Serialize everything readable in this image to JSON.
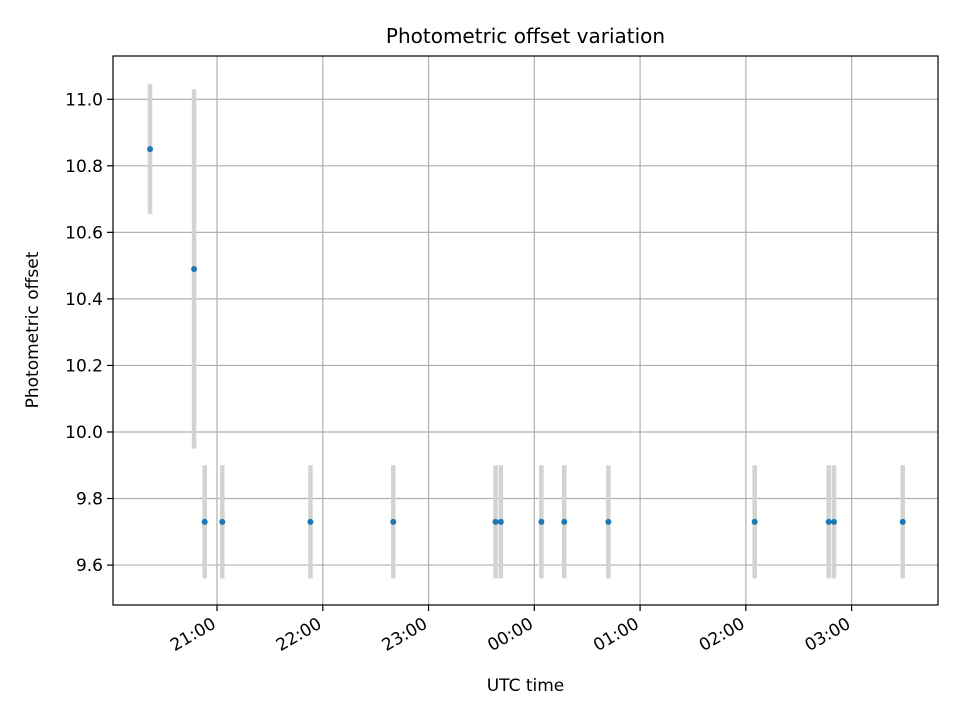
{
  "chart_data": {
    "type": "scatter",
    "title": "Photometric offset variation",
    "xlabel": "UTC time",
    "ylabel": "Photometric offset",
    "x_scale": "time",
    "xlim": [
      "20:01",
      "03:49"
    ],
    "ylim": [
      9.48,
      11.13
    ],
    "x_ticks": [
      "21:00",
      "22:00",
      "23:00",
      "00:00",
      "01:00",
      "02:00",
      "03:00"
    ],
    "y_ticks": [
      9.6,
      9.8,
      10.0,
      10.2,
      10.4,
      10.6,
      10.8,
      11.0
    ],
    "grid": true,
    "legend": "none",
    "marker_color": "#1f77b4",
    "errorbar_color": "#d3d3d3",
    "series": [
      {
        "points": [
          {
            "x": "20:22",
            "y": 10.85,
            "err": 0.195
          },
          {
            "x": "20:47",
            "y": 10.49,
            "err": 0.54
          },
          {
            "x": "20:53",
            "y": 9.73,
            "err": 0.17
          },
          {
            "x": "21:03",
            "y": 9.73,
            "err": 0.17
          },
          {
            "x": "21:53",
            "y": 9.73,
            "err": 0.17
          },
          {
            "x": "22:40",
            "y": 9.73,
            "err": 0.17
          },
          {
            "x": "23:38",
            "y": 9.73,
            "err": 0.17
          },
          {
            "x": "23:41",
            "y": 9.73,
            "err": 0.17
          },
          {
            "x": "00:04",
            "y": 9.73,
            "err": 0.17
          },
          {
            "x": "00:17",
            "y": 9.73,
            "err": 0.17
          },
          {
            "x": "00:42",
            "y": 9.73,
            "err": 0.17
          },
          {
            "x": "02:05",
            "y": 9.73,
            "err": 0.17
          },
          {
            "x": "02:47",
            "y": 9.73,
            "err": 0.17
          },
          {
            "x": "02:50",
            "y": 9.73,
            "err": 0.17
          },
          {
            "x": "03:29",
            "y": 9.73,
            "err": 0.17
          }
        ]
      }
    ]
  }
}
